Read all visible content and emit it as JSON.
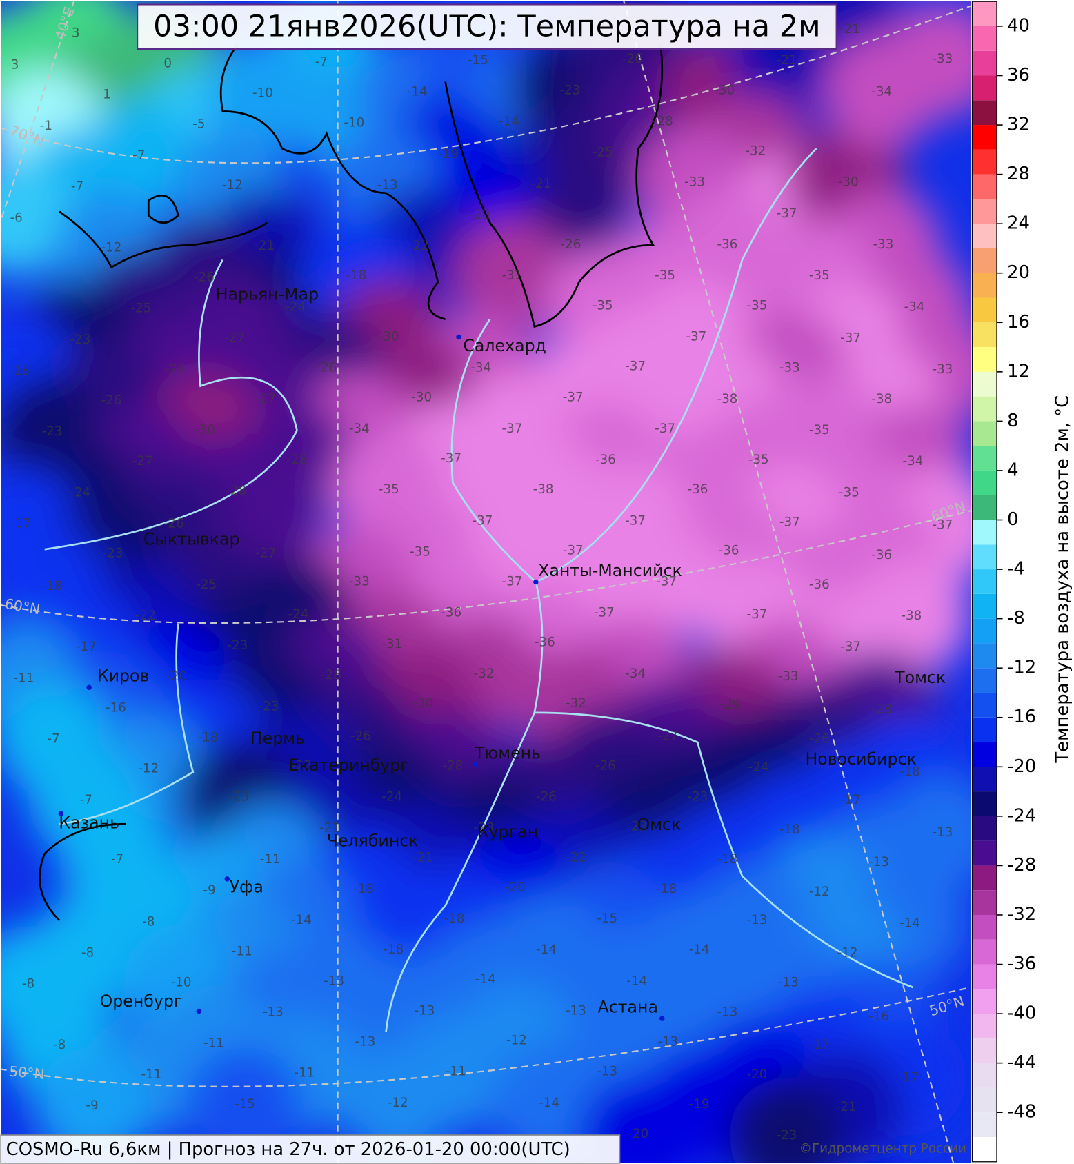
{
  "header": {
    "title": "03:00 21янв2026(UTC): Температура на 2м"
  },
  "footer": {
    "source": "COSMO-Ru 6,6км | Прогноз на  27ч. от 2026-01-20 00:00(UTC)",
    "copyright": "©Гидрометцентр России"
  },
  "map": {
    "cities": [
      {
        "name": "Нарьян-Мар"
      },
      {
        "name": "Салехард"
      },
      {
        "name": "Сыктывкар"
      },
      {
        "name": "Ханты-Мансийск"
      },
      {
        "name": "Киров"
      },
      {
        "name": "Пермь"
      },
      {
        "name": "Екатеринбург"
      },
      {
        "name": "Тюмень"
      },
      {
        "name": "Новосибирск"
      },
      {
        "name": "Томск"
      },
      {
        "name": "Казань"
      },
      {
        "name": "Челябинск"
      },
      {
        "name": "Курган"
      },
      {
        "name": "Омск"
      },
      {
        "name": "Уфа"
      },
      {
        "name": "Оренбург"
      },
      {
        "name": "Астана"
      }
    ],
    "grid_labels": [
      "40°E",
      "70°N",
      "60°N",
      "60°N",
      "50°N",
      "50°N"
    ],
    "temperatures": [
      3,
      3,
      0,
      1,
      -1,
      -5,
      -7,
      -7,
      -6,
      -7,
      -10,
      -10,
      -12,
      -14,
      -15,
      -14,
      -23,
      -26,
      -19,
      -13,
      -21,
      -25,
      -28,
      -30,
      -21,
      -21,
      -20,
      -22,
      -26,
      -12,
      -21,
      -26,
      -25,
      -24,
      -18,
      -23,
      -31,
      -35,
      -35,
      -32,
      -33,
      -37,
      -30,
      -34,
      -33,
      -36,
      -33,
      -35,
      -35,
      -34,
      -27,
      -30,
      -37,
      -37,
      -33,
      -38,
      -33,
      -38,
      -37,
      -37,
      -34,
      -30,
      -26,
      -27,
      -28,
      -18,
      -26,
      -23,
      -30,
      -34,
      -37,
      -37,
      -35,
      -34,
      -35,
      -36,
      -37,
      -28,
      -27,
      -24,
      -28,
      -35,
      -38,
      -36,
      -35,
      -17,
      -26,
      -37,
      -37,
      -37,
      -37,
      -23,
      -27,
      -35,
      -37,
      -36,
      -36,
      -18,
      -25,
      -33,
      -37,
      -37,
      -36,
      -22,
      -24,
      -36,
      -37,
      -37,
      -38,
      -17,
      -23,
      -31,
      -36,
      -37,
      -11,
      -20,
      -28,
      -32,
      -34,
      -33,
      -16,
      -23,
      -30,
      -32,
      -29,
      -28,
      -7,
      -18,
      -26,
      -27,
      -26,
      -12,
      -22,
      -28,
      -26,
      -24,
      -18,
      -7,
      -23,
      -24,
      -26,
      -23,
      -17,
      -21,
      -23,
      -23,
      -18,
      -13,
      -7,
      -11,
      -21,
      -22,
      -18,
      -13,
      -9,
      -18,
      -20,
      -18,
      -12,
      -8,
      -14,
      -18,
      -15,
      -13,
      -14,
      -8,
      -11,
      -18,
      -14,
      -14,
      -12,
      -8,
      -10,
      -13,
      -14,
      -14,
      -13,
      -13,
      -13,
      -13,
      -13,
      -16,
      -8,
      -11,
      -13,
      -12,
      -13,
      -17,
      -11,
      -11,
      -11,
      -13,
      -20,
      -17,
      -9,
      -15,
      -12,
      -14,
      -19,
      -21,
      -20,
      -23
    ]
  },
  "colorbar": {
    "label": "Температура воздуха на высоте 2м, °C",
    "lim": [
      -52,
      42
    ],
    "ticks": [
      -48,
      -44,
      -40,
      -36,
      -32,
      -28,
      -24,
      -20,
      -16,
      -12,
      -8,
      -4,
      0,
      4,
      8,
      12,
      16,
      20,
      24,
      28,
      32,
      36,
      40
    ],
    "levels": [
      -52,
      -50,
      -48,
      -46,
      -44,
      -42,
      -40,
      -38,
      -36,
      -34,
      -32,
      -30,
      -28,
      -26,
      -24,
      -22,
      -20,
      -18,
      -16,
      -14,
      -12,
      -10,
      -8,
      -6,
      -4,
      -2,
      0,
      2,
      4,
      6,
      8,
      10,
      12,
      14,
      16,
      18,
      20,
      22,
      24,
      26,
      28,
      30,
      32,
      34,
      36,
      38,
      40,
      42
    ],
    "colors": [
      "#ffffff",
      "#e8e8f4",
      "#e6e2f0",
      "#eadcf0",
      "#eed0ee",
      "#f0b8ee",
      "#f0a0ee",
      "#e882e6",
      "#d868d6",
      "#c24ec0",
      "#a8349e",
      "#8c1a80",
      "#4a0c90",
      "#2a0a80",
      "#0a0a70",
      "#1010b0",
      "#0000e0",
      "#0a30f0",
      "#1450f0",
      "#1e6ef0",
      "#1e8af0",
      "#14a0f4",
      "#10b4f4",
      "#30c8f8",
      "#60dcfc",
      "#a0f8fc",
      "#3cb878",
      "#40d888",
      "#60e090",
      "#a8e890",
      "#d0f4a8",
      "#ecfcd0",
      "#ffff80",
      "#f8e060",
      "#f8c840",
      "#f8b050",
      "#f8a070",
      "#ffc0c0",
      "#ff9898",
      "#ff6868",
      "#ff3030",
      "#ff0000",
      "#8c1040",
      "#d82070",
      "#e8409a",
      "#f868b0",
      "#ff98c0"
    ]
  }
}
